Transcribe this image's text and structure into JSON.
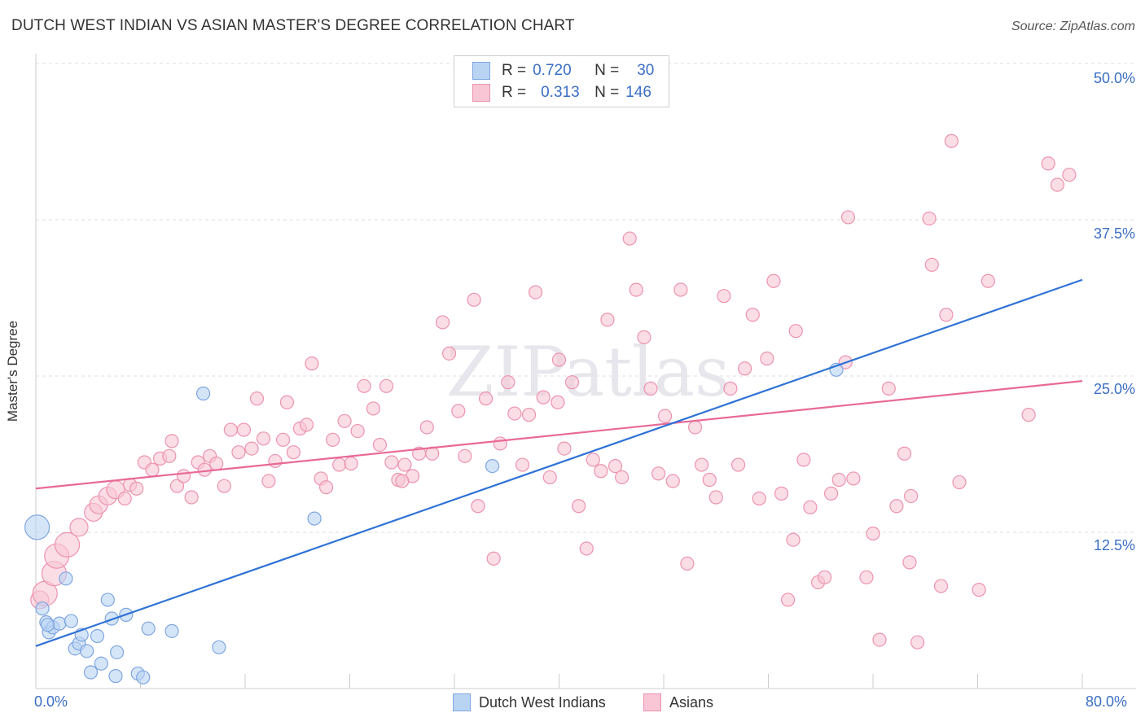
{
  "title": "DUTCH WEST INDIAN VS ASIAN MASTER'S DEGREE CORRELATION CHART",
  "source": "Source: ZipAtlas.com",
  "watermark": "ZIPatlas",
  "legend": {
    "rows": [
      {
        "r_label": "R =",
        "r_value": "0.720",
        "n_label": "N =",
        "n_value": "30"
      },
      {
        "r_label": "R =",
        "r_value": "0.313",
        "n_label": "N =",
        "n_value": "146"
      }
    ]
  },
  "bottom_legend": [
    "Dutch West Indians",
    "Asians"
  ],
  "colors": {
    "blue_fill": "#b9d3f3",
    "blue_stroke": "#7fa6e0",
    "blue_line": "#2f72d6",
    "pink_fill": "#f8c6d4",
    "pink_stroke": "#ec93b0",
    "pink_line": "#e86996",
    "tick_text": "#3b6fc4"
  },
  "chart_data": {
    "type": "scatter",
    "title": "DUTCH WEST INDIAN VS ASIAN MASTER'S DEGREE CORRELATION CHART",
    "xlabel": "",
    "ylabel": "Master's Degree",
    "xlim": [
      0,
      80
    ],
    "ylim": [
      0,
      50
    ],
    "x_tick_labels": [
      "0.0%",
      "80.0%"
    ],
    "y_ticks": [
      12.5,
      25.0,
      37.5,
      50.0
    ],
    "y_tick_labels": [
      "12.5%",
      "25.0%",
      "37.5%",
      "50.0%"
    ],
    "grid": "horizontal dashed",
    "legend_position": "top-center",
    "series": [
      {
        "name": "Dutch West Indians",
        "r": 0.72,
        "n": 30,
        "trend": [
          [
            0,
            3.4
          ],
          [
            80,
            32.7
          ]
        ],
        "points": [
          [
            0.1,
            12.9,
            3
          ],
          [
            0.5,
            6.4,
            1
          ],
          [
            0.8,
            5.3,
            1
          ],
          [
            1.0,
            4.5,
            1
          ],
          [
            1.3,
            4.9,
            1
          ],
          [
            2.3,
            8.8,
            1
          ],
          [
            1.8,
            5.2,
            1
          ],
          [
            2.7,
            5.4,
            1
          ],
          [
            3.0,
            3.2,
            1
          ],
          [
            3.3,
            3.6,
            1
          ],
          [
            3.5,
            4.3,
            1
          ],
          [
            3.9,
            3.0,
            1
          ],
          [
            4.2,
            1.3,
            1
          ],
          [
            4.7,
            4.2,
            1
          ],
          [
            5.0,
            2.0,
            1
          ],
          [
            5.5,
            7.1,
            1
          ],
          [
            5.8,
            5.6,
            1
          ],
          [
            6.2,
            2.9,
            1
          ],
          [
            6.1,
            1.0,
            1
          ],
          [
            6.9,
            5.9,
            1
          ],
          [
            7.8,
            1.2,
            1
          ],
          [
            8.2,
            0.9,
            1
          ],
          [
            8.6,
            4.8,
            1
          ],
          [
            10.4,
            4.6,
            1
          ],
          [
            12.8,
            23.6,
            1
          ],
          [
            14.0,
            3.3,
            1
          ],
          [
            21.3,
            13.6,
            1
          ],
          [
            34.9,
            17.8,
            1
          ],
          [
            61.2,
            25.5,
            1
          ],
          [
            0.9,
            5.1,
            1
          ]
        ]
      },
      {
        "name": "Asians",
        "r": 0.313,
        "n": 146,
        "trend": [
          [
            0,
            16.0
          ],
          [
            80,
            24.6
          ]
        ],
        "points": [
          [
            0.3,
            7.1,
            2
          ],
          [
            0.7,
            7.6,
            3
          ],
          [
            1.4,
            9.2,
            3
          ],
          [
            1.6,
            10.6,
            3
          ],
          [
            2.4,
            11.5,
            3
          ],
          [
            3.3,
            12.9,
            2
          ],
          [
            4.4,
            14.1,
            2
          ],
          [
            4.8,
            14.7,
            2
          ],
          [
            5.5,
            15.4,
            2
          ],
          [
            6.1,
            15.9,
            2
          ],
          [
            6.8,
            15.2,
            1
          ],
          [
            7.2,
            16.3,
            1
          ],
          [
            7.7,
            16.0,
            1
          ],
          [
            8.3,
            18.1,
            1
          ],
          [
            8.9,
            17.5,
            1
          ],
          [
            9.5,
            18.4,
            1
          ],
          [
            10.2,
            18.6,
            1
          ],
          [
            10.4,
            19.8,
            1
          ],
          [
            10.8,
            16.2,
            1
          ],
          [
            11.3,
            17.0,
            1
          ],
          [
            11.9,
            15.3,
            1
          ],
          [
            12.4,
            18.1,
            1
          ],
          [
            12.9,
            17.5,
            1
          ],
          [
            13.3,
            18.6,
            1
          ],
          [
            13.8,
            18.0,
            1
          ],
          [
            14.4,
            16.2,
            1
          ],
          [
            14.9,
            20.7,
            1
          ],
          [
            15.5,
            18.9,
            1
          ],
          [
            15.9,
            20.7,
            1
          ],
          [
            16.5,
            19.2,
            1
          ],
          [
            16.9,
            23.2,
            1
          ],
          [
            17.4,
            20.0,
            1
          ],
          [
            17.8,
            16.6,
            1
          ],
          [
            18.3,
            18.2,
            1
          ],
          [
            18.9,
            19.9,
            1
          ],
          [
            19.2,
            22.9,
            1
          ],
          [
            19.7,
            18.9,
            1
          ],
          [
            20.2,
            20.8,
            1
          ],
          [
            20.7,
            21.1,
            1
          ],
          [
            21.1,
            26.0,
            1
          ],
          [
            21.8,
            16.8,
            1
          ],
          [
            22.2,
            16.1,
            1
          ],
          [
            22.7,
            19.9,
            1
          ],
          [
            23.2,
            17.9,
            1
          ],
          [
            23.6,
            21.4,
            1
          ],
          [
            24.1,
            18.0,
            1
          ],
          [
            24.6,
            20.6,
            1
          ],
          [
            25.1,
            24.2,
            1
          ],
          [
            25.8,
            22.4,
            1
          ],
          [
            26.3,
            19.5,
            1
          ],
          [
            26.8,
            24.2,
            1
          ],
          [
            27.2,
            18.1,
            1
          ],
          [
            27.7,
            16.7,
            1
          ],
          [
            28.2,
            17.9,
            1
          ],
          [
            28.8,
            17.0,
            1
          ],
          [
            29.3,
            18.8,
            1
          ],
          [
            29.9,
            20.9,
            1
          ],
          [
            30.3,
            18.8,
            1
          ],
          [
            31.1,
            29.3,
            1
          ],
          [
            31.6,
            26.8,
            1
          ],
          [
            32.3,
            22.2,
            1
          ],
          [
            32.8,
            18.6,
            1
          ],
          [
            33.5,
            31.1,
            1
          ],
          [
            33.8,
            14.6,
            1
          ],
          [
            34.4,
            23.2,
            1
          ],
          [
            35.0,
            10.4,
            1
          ],
          [
            35.5,
            19.6,
            1
          ],
          [
            36.1,
            24.5,
            1
          ],
          [
            36.6,
            22.0,
            1
          ],
          [
            37.2,
            17.9,
            1
          ],
          [
            37.7,
            21.9,
            1
          ],
          [
            38.2,
            31.7,
            1
          ],
          [
            38.8,
            23.3,
            1
          ],
          [
            39.3,
            16.9,
            1
          ],
          [
            39.9,
            22.9,
            1
          ],
          [
            40.4,
            19.2,
            1
          ],
          [
            41.0,
            24.5,
            1
          ],
          [
            41.5,
            14.6,
            1
          ],
          [
            42.1,
            11.2,
            1
          ],
          [
            42.6,
            18.3,
            1
          ],
          [
            43.2,
            17.4,
            1
          ],
          [
            43.7,
            29.5,
            1
          ],
          [
            44.3,
            17.8,
            1
          ],
          [
            44.8,
            16.9,
            1
          ],
          [
            45.4,
            36.0,
            1
          ],
          [
            45.9,
            31.9,
            1
          ],
          [
            46.5,
            28.1,
            1
          ],
          [
            47.0,
            24.0,
            1
          ],
          [
            47.6,
            17.2,
            1
          ],
          [
            48.1,
            21.8,
            1
          ],
          [
            48.7,
            16.6,
            1
          ],
          [
            49.3,
            31.9,
            1
          ],
          [
            49.8,
            10.0,
            1
          ],
          [
            50.4,
            20.9,
            1
          ],
          [
            50.9,
            17.9,
            1
          ],
          [
            51.5,
            16.7,
            1
          ],
          [
            52.0,
            15.3,
            1
          ],
          [
            52.6,
            31.4,
            1
          ],
          [
            53.1,
            24.0,
            1
          ],
          [
            53.7,
            17.9,
            1
          ],
          [
            54.2,
            25.6,
            1
          ],
          [
            54.8,
            29.9,
            1
          ],
          [
            55.3,
            15.2,
            1
          ],
          [
            55.9,
            26.4,
            1
          ],
          [
            56.4,
            32.6,
            1
          ],
          [
            57.0,
            15.6,
            1
          ],
          [
            57.5,
            7.1,
            1
          ],
          [
            58.1,
            28.6,
            1
          ],
          [
            58.7,
            18.3,
            1
          ],
          [
            59.2,
            14.5,
            1
          ],
          [
            59.8,
            8.5,
            1
          ],
          [
            60.3,
            8.9,
            1
          ],
          [
            60.8,
            15.6,
            1
          ],
          [
            61.4,
            16.7,
            1
          ],
          [
            61.9,
            26.1,
            1
          ],
          [
            62.1,
            37.7,
            1
          ],
          [
            62.5,
            16.8,
            1
          ],
          [
            63.5,
            8.9,
            1
          ],
          [
            64.0,
            12.4,
            1
          ],
          [
            64.5,
            3.9,
            1
          ],
          [
            65.2,
            24.0,
            1
          ],
          [
            65.8,
            14.6,
            1
          ],
          [
            66.4,
            18.8,
            1
          ],
          [
            66.8,
            10.1,
            1
          ],
          [
            67.4,
            3.7,
            1
          ],
          [
            68.3,
            37.6,
            1
          ],
          [
            68.5,
            33.9,
            1
          ],
          [
            69.2,
            8.2,
            1
          ],
          [
            69.6,
            29.9,
            1
          ],
          [
            70.0,
            43.8,
            1
          ],
          [
            70.6,
            16.5,
            1
          ],
          [
            72.1,
            7.9,
            1
          ],
          [
            72.8,
            32.6,
            1
          ],
          [
            75.9,
            21.9,
            1
          ],
          [
            77.4,
            42.0,
            1
          ],
          [
            78.1,
            40.3,
            1
          ],
          [
            79.0,
            41.1,
            1
          ],
          [
            66.9,
            15.4,
            1
          ],
          [
            57.9,
            11.9,
            1
          ],
          [
            40.0,
            26.3,
            1
          ],
          [
            28.0,
            16.6,
            1
          ]
        ]
      }
    ]
  }
}
